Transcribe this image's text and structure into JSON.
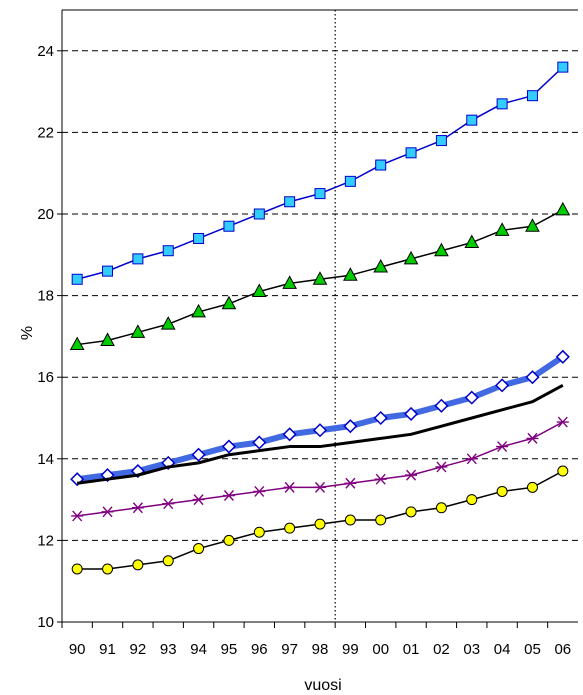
{
  "chart_data": {
    "type": "line",
    "title": "",
    "xlabel": "vuosi",
    "ylabel": "%",
    "categories": [
      "90",
      "91",
      "92",
      "93",
      "94",
      "95",
      "96",
      "97",
      "98",
      "99",
      "00",
      "01",
      "02",
      "03",
      "04",
      "05",
      "06"
    ],
    "ylim": [
      10,
      25
    ],
    "yticks": [
      10,
      12,
      14,
      16,
      18,
      20,
      22,
      24
    ],
    "grid": "horizontal dashed",
    "reference_line_category": "99",
    "series": [
      {
        "values": [
          18.4,
          18.6,
          18.9,
          19.1,
          19.4,
          19.7,
          20.0,
          20.3,
          20.5,
          20.8,
          21.2,
          21.5,
          21.8,
          22.3,
          22.7,
          22.9,
          23.6
        ],
        "color": "#0000cc",
        "marker": "square",
        "marker_fill": "#33ccff"
      },
      {
        "values": [
          16.8,
          16.9,
          17.1,
          17.3,
          17.6,
          17.8,
          18.1,
          18.3,
          18.4,
          18.5,
          18.7,
          18.9,
          19.1,
          19.3,
          19.6,
          19.7,
          20.1
        ],
        "color": "#000000",
        "marker": "triangle",
        "marker_fill": "#00cc00"
      },
      {
        "values": [
          13.5,
          13.6,
          13.7,
          13.9,
          14.1,
          14.3,
          14.4,
          14.6,
          14.7,
          14.8,
          15.0,
          15.1,
          15.3,
          15.5,
          15.8,
          16.0,
          16.5
        ],
        "color": "#4169e1",
        "marker": "diamond",
        "marker_fill": "#ffffff",
        "line_width": 6
      },
      {
        "values": [
          13.4,
          13.5,
          13.6,
          13.8,
          13.9,
          14.1,
          14.2,
          14.3,
          14.3,
          14.4,
          14.5,
          14.6,
          14.8,
          15.0,
          15.2,
          15.4,
          15.8
        ],
        "color": "#000000",
        "marker": "none",
        "line_width": 3
      },
      {
        "values": [
          12.6,
          12.7,
          12.8,
          12.9,
          13.0,
          13.1,
          13.2,
          13.3,
          13.3,
          13.4,
          13.5,
          13.6,
          13.8,
          14.0,
          14.3,
          14.5,
          14.9
        ],
        "color": "#800080",
        "marker": "asterisk"
      },
      {
        "values": [
          11.3,
          11.3,
          11.4,
          11.5,
          11.8,
          12.0,
          12.2,
          12.3,
          12.4,
          12.5,
          12.5,
          12.7,
          12.8,
          13.0,
          13.2,
          13.3,
          13.7
        ],
        "color": "#000000",
        "marker": "circle",
        "marker_fill": "#ffff00"
      }
    ]
  }
}
